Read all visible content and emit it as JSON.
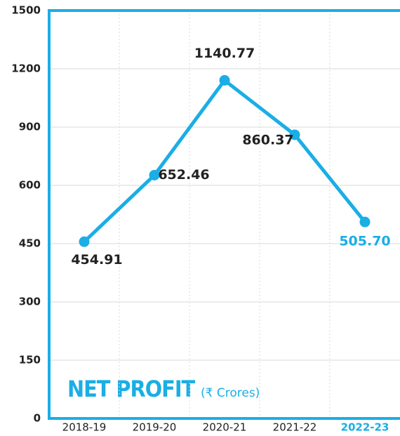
{
  "chart_data": {
    "type": "line",
    "title": "NET PROFIT",
    "subtitle": "(₹ Crores)",
    "categories": [
      "2018-19",
      "2019-20",
      "2020-21",
      "2021-22",
      "2022-23"
    ],
    "series": [
      {
        "name": "Net Profit",
        "color": "#1aaee5",
        "values": [
          454.91,
          652.46,
          1140.77,
          860.37,
          505.7
        ]
      }
    ],
    "value_labels": [
      "454.91",
      "652.46",
      "1140.77",
      "860.37",
      "505.70"
    ],
    "label_colors": [
      "#222222",
      "#222222",
      "#222222",
      "#222222",
      "#1aaee5"
    ],
    "ylim": [
      0,
      1500
    ],
    "yticks": [
      0,
      150,
      300,
      450,
      600,
      900,
      1200,
      1500
    ],
    "grid": true
  }
}
